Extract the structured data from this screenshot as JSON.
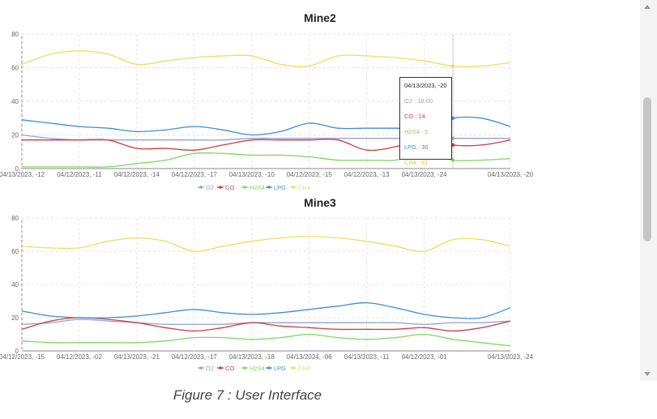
{
  "caption": "Figure 7 : User Interface",
  "legend_items": [
    {
      "name": "O2",
      "color": "#9aa0d8"
    },
    {
      "name": "CO",
      "color": "#d73a3a"
    },
    {
      "name": "H2S4",
      "color": "#7ed957"
    },
    {
      "name": "LPG",
      "color": "#3a8fd6"
    },
    {
      "name": "CH4",
      "color": "#f2dc5d"
    }
  ],
  "tooltip": {
    "date": "04/13/2023, -20",
    "o2": "O2 : 18.00",
    "co": "CO : 14",
    "h2s4": "H2S4 : 5",
    "lpg": "LPG : 30",
    "ch4": "CH4 : 61"
  },
  "chart_data": [
    {
      "type": "line",
      "title": "Mine2",
      "ylim": [
        0,
        80
      ],
      "yticks": [
        0,
        20,
        40,
        60,
        80
      ],
      "grid": true,
      "legend": "bottom-center",
      "x": [
        "04/13/2023, -12",
        "",
        "04/12/2023, -11",
        "",
        "04/12/2023, -14",
        "",
        "04/12/2023, -17",
        "",
        "04/13/2023, -10",
        "",
        "04/12/2023, -15",
        "",
        "04/12/2023, -13",
        "",
        "04/13/2023, -24",
        "",
        "",
        "04/13/2023, -20"
      ],
      "x_label_indices": [
        0,
        2,
        4,
        6,
        8,
        10,
        12,
        14,
        17
      ],
      "series": [
        {
          "name": "O2",
          "color": "#9aa0d8",
          "values": [
            20,
            18,
            17,
            17,
            17,
            17,
            17,
            17,
            18,
            18,
            18,
            18,
            18,
            18,
            18,
            18,
            18,
            18
          ]
        },
        {
          "name": "CO",
          "color": "#d73a3a",
          "values": [
            17,
            17,
            17,
            17,
            12,
            12,
            11,
            14,
            17,
            17,
            17,
            17,
            11,
            13,
            18,
            14,
            14,
            17
          ]
        },
        {
          "name": "H2S4",
          "color": "#7ed957",
          "values": [
            1,
            1,
            1,
            1,
            3,
            5,
            9,
            9,
            8,
            8,
            7,
            5,
            5,
            5,
            9,
            5,
            5,
            6
          ]
        },
        {
          "name": "LPG",
          "color": "#3a8fd6",
          "values": [
            29,
            27,
            25,
            24,
            22,
            23,
            25,
            23,
            20,
            22,
            27,
            24,
            24,
            24,
            24,
            30,
            30,
            25
          ]
        },
        {
          "name": "CH4",
          "color": "#f2dc5d",
          "values": [
            62,
            68,
            70,
            68,
            62,
            64,
            66,
            67,
            67,
            62,
            61,
            67,
            67,
            66,
            64,
            61,
            61,
            63
          ]
        }
      ]
    },
    {
      "type": "line",
      "title": "Mine3",
      "ylim": [
        0,
        80
      ],
      "yticks": [
        0,
        20,
        40,
        60,
        80
      ],
      "grid": true,
      "legend": "bottom-center",
      "x": [
        "04/12/2023, -15",
        "",
        "04/12/2023, -02",
        "",
        "04/13/2023, -21",
        "",
        "04/12/2023, -17",
        "",
        "04/13/2023, -18",
        "",
        "04/13/2024, -06",
        "",
        "04/13/2023, -11",
        "",
        "04/12/2023, -01",
        "",
        "",
        "04/13/2023, -24"
      ],
      "x_label_indices": [
        0,
        2,
        4,
        6,
        8,
        10,
        12,
        14,
        17
      ],
      "series": [
        {
          "name": "O2",
          "color": "#9aa0d8",
          "values": [
            16,
            17,
            19,
            18,
            17,
            16,
            16,
            16,
            17,
            17,
            17,
            17,
            17,
            17,
            16,
            17,
            17,
            18
          ]
        },
        {
          "name": "CO",
          "color": "#d73a3a",
          "values": [
            13,
            18,
            20,
            19,
            17,
            14,
            12,
            14,
            17,
            15,
            14,
            13,
            13,
            13,
            14,
            12,
            14,
            18
          ]
        },
        {
          "name": "H2S4",
          "color": "#7ed957",
          "values": [
            6,
            5,
            5,
            5,
            5,
            6,
            8,
            8,
            7,
            8,
            10,
            8,
            7,
            8,
            10,
            7,
            5,
            3
          ]
        },
        {
          "name": "LPG",
          "color": "#3a8fd6",
          "values": [
            24,
            21,
            20,
            20,
            21,
            23,
            25,
            23,
            22,
            23,
            25,
            27,
            29,
            26,
            22,
            20,
            20,
            26
          ]
        },
        {
          "name": "CH4",
          "color": "#f2dc5d",
          "values": [
            63,
            62,
            62,
            66,
            68,
            66,
            60,
            63,
            66,
            68,
            69,
            68,
            66,
            63,
            60,
            67,
            67,
            63
          ]
        }
      ]
    }
  ]
}
